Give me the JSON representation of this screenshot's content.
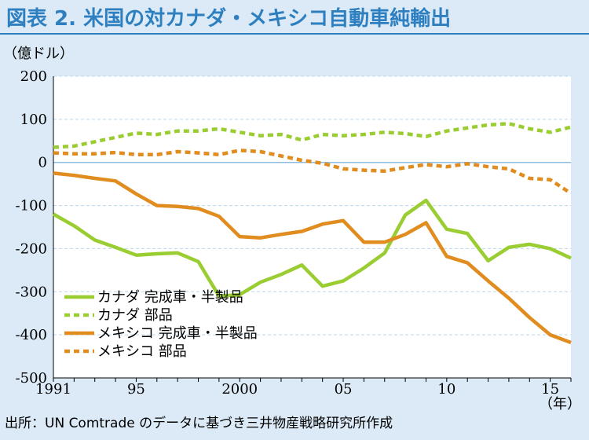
{
  "chart_data": {
    "type": "line",
    "title": "図表 2. 米国の対カナダ・メキシコ自動車純輸出",
    "ylabel": "（億ドル）",
    "xunit": "（年）",
    "ylim": [
      -500,
      200
    ],
    "xlim": [
      1991,
      2016
    ],
    "yticks": [
      200,
      100,
      0,
      -100,
      -200,
      -300,
      -400,
      -500
    ],
    "ytick_labels": [
      "200",
      "100",
      "0",
      "-100",
      "-200",
      "-300",
      "-400",
      "-500"
    ],
    "xticks": [
      1991,
      1995,
      2000,
      2005,
      2010,
      2015
    ],
    "xtick_labels": [
      "1991",
      "95",
      "2000",
      "05",
      "10",
      "15"
    ],
    "grid": true,
    "legend_position": "bottom-left",
    "x": [
      1991,
      1992,
      1993,
      1994,
      1995,
      1996,
      1997,
      1998,
      1999,
      2000,
      2001,
      2002,
      2003,
      2004,
      2005,
      2006,
      2007,
      2008,
      2009,
      2010,
      2011,
      2012,
      2013,
      2014,
      2015,
      2016
    ],
    "series": [
      {
        "name": "カナダ 完成車・半製品",
        "color": "#9acd32",
        "dash": "solid",
        "values": [
          -120,
          -147,
          -180,
          -197,
          -215,
          -212,
          -210,
          -230,
          -310,
          -307,
          -278,
          -260,
          -238,
          -287,
          -275,
          -245,
          -210,
          -122,
          -88,
          -155,
          -165,
          -228,
          -197,
          -190,
          -200,
          -222
        ]
      },
      {
        "name": "カナダ 部品",
        "color": "#9acd32",
        "dash": "dashed",
        "values": [
          35,
          38,
          48,
          58,
          68,
          65,
          73,
          73,
          78,
          70,
          62,
          65,
          52,
          65,
          62,
          65,
          70,
          67,
          60,
          73,
          80,
          87,
          90,
          78,
          70,
          82
        ]
      },
      {
        "name": "メキシコ 完成車・半製品",
        "color": "#e08c1e",
        "dash": "solid",
        "values": [
          -25,
          -30,
          -37,
          -43,
          -73,
          -100,
          -102,
          -107,
          -125,
          -172,
          -175,
          -167,
          -160,
          -143,
          -135,
          -185,
          -185,
          -167,
          -140,
          -218,
          -233,
          -275,
          -315,
          -360,
          -400,
          -418
        ]
      },
      {
        "name": "メキシコ 部品",
        "color": "#e08c1e",
        "dash": "dashed",
        "values": [
          22,
          20,
          20,
          23,
          18,
          18,
          25,
          22,
          18,
          28,
          25,
          15,
          5,
          -2,
          -15,
          -18,
          -20,
          -12,
          -5,
          -10,
          -3,
          -10,
          -15,
          -37,
          -40,
          -72
        ]
      }
    ],
    "source": "出所：UN Comtrade のデータに基づき三井物産戦略研究所作成"
  }
}
